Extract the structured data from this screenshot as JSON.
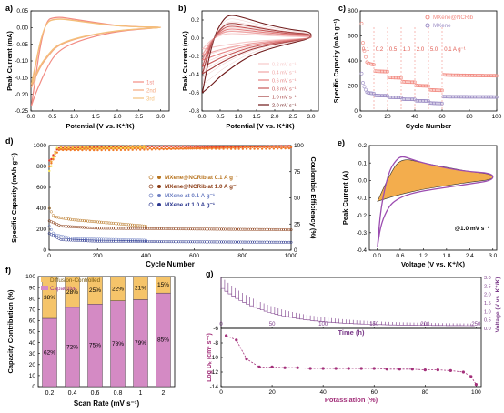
{
  "chart_data": [
    {
      "panel": "a)",
      "type": "line",
      "xlabel": "Potential (V vs. K⁺/K)",
      "ylabel": "Peak Current (mA)",
      "xlim": [
        0,
        3.2
      ],
      "ylim": [
        -0.25,
        0.05
      ],
      "xticks": [
        "0.0",
        "0.5",
        "1.0",
        "1.5",
        "2.0",
        "2.5",
        "3.0"
      ],
      "yticks": [
        "0.05",
        "0.00",
        "-0.05",
        "-0.10",
        "-0.15",
        "-0.20",
        "-0.25"
      ],
      "series": [
        {
          "name": "1st",
          "color": "#f28b82",
          "x": [
            0.01,
            0.3,
            0.6,
            1.0,
            1.5,
            2.0,
            2.5,
            3.0,
            3.0,
            2.5,
            2.0,
            1.5,
            1.0,
            0.7,
            0.5,
            0.3,
            0.2,
            0.1,
            0.01
          ],
          "y": [
            -0.235,
            0.02,
            0.033,
            0.025,
            0.015,
            0.006,
            0.002,
            0.001,
            0.0,
            -0.005,
            -0.012,
            -0.025,
            -0.045,
            -0.065,
            -0.09,
            -0.14,
            -0.17,
            -0.2,
            -0.235
          ]
        },
        {
          "name": "2nd",
          "color": "#f5a97f",
          "x": [
            0.01,
            0.3,
            0.6,
            1.0,
            1.5,
            2.0,
            2.5,
            3.0,
            3.0,
            2.5,
            2.0,
            1.5,
            1.0,
            0.6,
            0.4,
            0.2,
            0.01
          ],
          "y": [
            -0.18,
            0.015,
            0.028,
            0.022,
            0.013,
            0.005,
            0.002,
            0.001,
            0.0,
            -0.004,
            -0.01,
            -0.02,
            -0.035,
            -0.055,
            -0.085,
            -0.12,
            -0.18
          ]
        },
        {
          "name": "3rd",
          "color": "#f4c07a",
          "x": [
            0.01,
            0.3,
            0.6,
            1.0,
            1.5,
            2.0,
            2.5,
            3.0,
            3.0,
            2.5,
            2.0,
            1.5,
            1.0,
            0.6,
            0.4,
            0.2,
            0.01
          ],
          "y": [
            -0.17,
            0.014,
            0.027,
            0.021,
            0.012,
            0.005,
            0.002,
            0.001,
            0.0,
            -0.004,
            -0.009,
            -0.019,
            -0.033,
            -0.052,
            -0.08,
            -0.115,
            -0.17
          ]
        }
      ]
    },
    {
      "panel": "b)",
      "type": "line",
      "xlabel": "Potential (V vs. K⁺/K)",
      "ylabel": "Peak Current (mA)",
      "xlim": [
        0,
        3.2
      ],
      "ylim": [
        -0.8,
        0.3
      ],
      "xticks": [
        "0.0",
        "0.5",
        "1.0",
        "1.5",
        "2.0",
        "2.5",
        "3.0"
      ],
      "yticks": [
        "0.2",
        "0.0",
        "-0.2",
        "-0.4",
        "-0.6",
        "-0.8"
      ],
      "series": [
        {
          "name": "0.2 mV s⁻¹",
          "color": "#f6c9c9",
          "scale": 0.2
        },
        {
          "name": "0.4 mV s⁻¹",
          "color": "#efa5a5",
          "scale": 0.3
        },
        {
          "name": "0.6 mV s⁻¹",
          "color": "#e58080",
          "scale": 0.4
        },
        {
          "name": "0.8 mV s⁻¹",
          "color": "#c85858",
          "scale": 0.52
        },
        {
          "name": "1.0 mV s⁻¹",
          "color": "#a03838",
          "scale": 0.65
        },
        {
          "name": "2.0 mV s⁻¹",
          "color": "#6e1818",
          "scale": 1.0
        }
      ],
      "base_cycle": {
        "x": [
          0.01,
          0.3,
          0.6,
          0.8,
          1.2,
          1.6,
          2.0,
          2.5,
          3.0,
          3.0,
          2.5,
          2.0,
          1.6,
          1.2,
          0.8,
          0.5,
          0.3,
          0.1,
          0.01
        ],
        "y": [
          -0.6,
          0.0,
          0.22,
          0.26,
          0.22,
          0.17,
          0.13,
          0.09,
          0.07,
          0.0,
          -0.05,
          -0.1,
          -0.15,
          -0.22,
          -0.33,
          -0.42,
          -0.5,
          -0.57,
          -0.6
        ]
      }
    },
    {
      "panel": "c)",
      "type": "scatter",
      "xlabel": "Cycle Number",
      "ylabel": "Specific Capacity (mAh g⁻¹)",
      "xlim": [
        0,
        100
      ],
      "ylim": [
        0,
        800
      ],
      "xticks": [
        "0",
        "20",
        "40",
        "60",
        "80",
        "100"
      ],
      "yticks": [
        "0",
        "200",
        "400",
        "600",
        "800"
      ],
      "rate_labels": [
        "0.1",
        "0.2",
        "0.5",
        "1.0",
        "2.0",
        "5.0",
        "0.1 A g⁻¹"
      ],
      "series": [
        {
          "name": "MXene@NCRib",
          "color": "#f28b82",
          "segments": [
            [
              1,
              5,
              700,
              390
            ],
            [
              5,
              10,
              390,
              370
            ],
            [
              11,
              20,
              320,
              315
            ],
            [
              21,
              30,
              270,
              265
            ],
            [
              31,
              40,
              235,
              230
            ],
            [
              41,
              50,
              205,
              200
            ],
            [
              51,
              60,
              170,
              165
            ],
            [
              61,
              100,
              290,
              282
            ]
          ]
        },
        {
          "name": "MXene",
          "color": "#9b8cc4",
          "segments": [
            [
              1,
              5,
              300,
              150
            ],
            [
              5,
              10,
              150,
              140
            ],
            [
              11,
              20,
              125,
              122
            ],
            [
              21,
              30,
              110,
              108
            ],
            [
              31,
              40,
              95,
              93
            ],
            [
              41,
              50,
              82,
              80
            ],
            [
              51,
              60,
              65,
              60
            ],
            [
              61,
              100,
              115,
              112
            ]
          ]
        }
      ]
    },
    {
      "panel": "d)",
      "type": "scatter",
      "xlabel": "Cycle Number",
      "ylabel": "Specific Capacity (mAh g⁻¹)",
      "y2label": "Coulombic Efficiency (%)",
      "xlim": [
        0,
        1000
      ],
      "ylim": [
        0,
        1000
      ],
      "y2lim": [
        0,
        100
      ],
      "xticks": [
        "0",
        "200",
        "400",
        "600",
        "800",
        "1000"
      ],
      "yticks": [
        "0",
        "200",
        "400",
        "600",
        "800",
        "1000"
      ],
      "y2ticks": [
        "0",
        "25",
        "50",
        "75",
        "100"
      ],
      "series": [
        {
          "name": "MXene@NCRib at 0.1 A g⁻¹",
          "color": "#b8741f",
          "capacity": [
            [
              1,
              400
            ],
            [
              20,
              320
            ],
            [
              100,
              290
            ],
            [
              400,
              230
            ]
          ],
          "ce_pct": [
            [
              1,
              80
            ],
            [
              30,
              97
            ],
            [
              400,
              99
            ]
          ]
        },
        {
          "name": "MXene@NCRib at 1.0 A g⁻¹",
          "color": "#8a3a12",
          "capacity": [
            [
              1,
              280
            ],
            [
              50,
              230
            ],
            [
              200,
              210
            ],
            [
              1000,
              195
            ]
          ],
          "ce_pct": [
            [
              1,
              85
            ],
            [
              40,
              98
            ],
            [
              1000,
              99
            ]
          ]
        },
        {
          "name": "MXene at 0.1 A g⁻¹",
          "color": "#6c7ec2",
          "capacity": [
            [
              1,
              230
            ],
            [
              20,
              150
            ],
            [
              100,
              110
            ],
            [
              400,
              95
            ]
          ],
          "ce_pct": [
            [
              1,
              75
            ],
            [
              30,
              97
            ],
            [
              400,
              98
            ]
          ]
        },
        {
          "name": "MXene at 1.0 A g⁻¹",
          "color": "#2d3990",
          "capacity": [
            [
              1,
              160
            ],
            [
              50,
              100
            ],
            [
              200,
              85
            ],
            [
              1000,
              75
            ]
          ],
          "ce_pct": [
            [
              1,
              80
            ],
            [
              40,
              96
            ],
            [
              1000,
              98
            ]
          ]
        }
      ]
    },
    {
      "panel": "e)",
      "type": "area",
      "xlabel": "Voltage (V vs. K⁺/K)",
      "ylabel": "Peak Current (A)",
      "annotation": "@1.0 mV s⁻¹",
      "xlim": [
        -0.2,
        3.1
      ],
      "ylim": [
        -0.4,
        0.2
      ],
      "xticks": [
        "0.0",
        "0.6",
        "1.2",
        "1.8",
        "2.4",
        "3.0"
      ],
      "yticks": [
        "0.2",
        "0.1",
        "0.0",
        "-0.1",
        "-0.2",
        "-0.3",
        "-0.4"
      ],
      "total": {
        "color": "#9b4cb0",
        "x": [
          0.01,
          0.1,
          0.3,
          0.5,
          0.65,
          0.9,
          1.2,
          1.8,
          2.4,
          3.0,
          3.0,
          2.4,
          1.8,
          1.2,
          0.8,
          0.5,
          0.3,
          0.1,
          0.01
        ],
        "y": [
          -0.38,
          -0.15,
          0.05,
          0.12,
          0.14,
          0.12,
          0.1,
          0.07,
          0.05,
          0.04,
          0.0,
          -0.02,
          -0.04,
          -0.06,
          -0.08,
          -0.11,
          -0.15,
          -0.25,
          -0.38
        ]
      },
      "capacitive": {
        "color": "#f2a43a",
        "x": [
          0.01,
          0.3,
          0.6,
          1.2,
          1.8,
          2.4,
          3.0,
          3.0,
          2.4,
          1.8,
          1.2,
          0.6,
          0.3,
          0.01
        ],
        "y": [
          -0.12,
          0.02,
          0.13,
          0.1,
          0.075,
          0.05,
          0.035,
          0.005,
          -0.01,
          -0.03,
          -0.05,
          -0.08,
          -0.1,
          -0.12
        ]
      }
    },
    {
      "panel": "f)",
      "type": "bar",
      "xlabel": "Scan Rate (mV s⁻¹)",
      "ylabel": "Capacity Contribution (%)",
      "categories": [
        "0.2",
        "0.4",
        "0.6",
        "0.8",
        "1",
        "2"
      ],
      "ylim": [
        0,
        100
      ],
      "yticks": [
        "0",
        "10",
        "20",
        "30",
        "40",
        "50",
        "60",
        "70",
        "80",
        "90",
        "100"
      ],
      "series": [
        {
          "name": "Capacitive",
          "color": "#d48ac4",
          "values": [
            62,
            72,
            75,
            78,
            79,
            85
          ],
          "labels": [
            "62%",
            "72%",
            "75%",
            "78%",
            "79%",
            "85%"
          ]
        },
        {
          "name": "Diffusion-Controlled",
          "color": "#f5c46a",
          "values": [
            38,
            28,
            25,
            22,
            21,
            15
          ],
          "labels": [
            "38%",
            "28%",
            "25%",
            "22%",
            "21%",
            "15%"
          ]
        }
      ]
    },
    {
      "panel": "g)",
      "type": "line",
      "top": {
        "xlabel": "Time (h)",
        "ylabel": "Voltage (V vs. K⁺/K)",
        "xlim": [
          0,
          255
        ],
        "ylim": [
          0,
          3.0
        ],
        "xticks": [
          "0",
          "50",
          "100",
          "150",
          "200",
          "250"
        ],
        "yticks": [
          "0.0",
          "0.5",
          "1.0",
          "1.5",
          "2.0",
          "2.5",
          "3.0"
        ],
        "color": "#7a3a88"
      },
      "bottom": {
        "xlabel": "Potassiation (%)",
        "ylabel": "Log Dₖ (cm² s⁻¹)",
        "xlim": [
          0,
          102
        ],
        "ylim": [
          -14,
          -6
        ],
        "xticks": [
          "0",
          "20",
          "40",
          "60",
          "80",
          "100"
        ],
        "yticks": [
          "-6",
          "-8",
          "-10",
          "-12",
          "-14"
        ],
        "color": "#a3307a",
        "x": [
          2,
          6,
          10,
          15,
          20,
          25,
          30,
          35,
          40,
          45,
          50,
          55,
          60,
          65,
          70,
          75,
          80,
          85,
          90,
          95,
          98,
          100
        ],
        "y": [
          -7.0,
          -7.6,
          -10.2,
          -11.3,
          -11.3,
          -11.4,
          -11.4,
          -11.5,
          -11.5,
          -11.5,
          -11.5,
          -11.5,
          -11.5,
          -11.6,
          -11.6,
          -11.6,
          -11.7,
          -11.7,
          -11.8,
          -12.0,
          -12.6,
          -13.7
        ]
      }
    }
  ]
}
